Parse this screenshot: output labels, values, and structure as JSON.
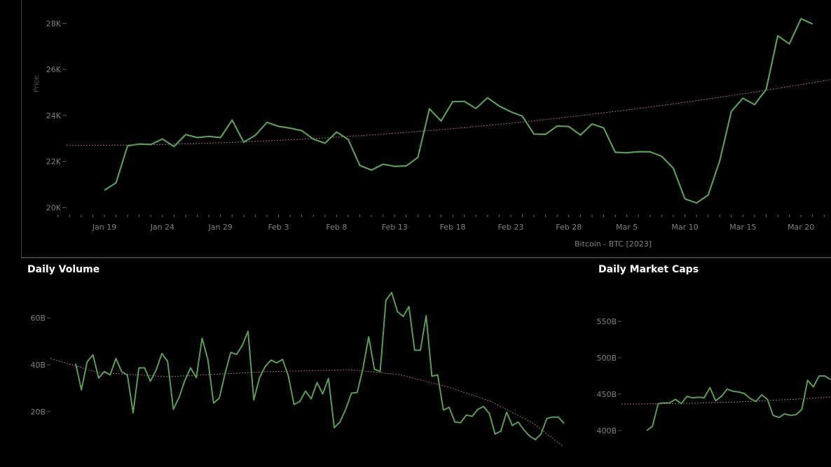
{
  "colors": {
    "background": "#000000",
    "price_line": "#5e9a59",
    "trend_line": "#a76d7f",
    "axis_text": "#7f7f7f",
    "title_text": "#ffffff"
  },
  "titles": {
    "volume": "Daily Volume",
    "market_caps": "Daily Market Caps"
  },
  "chart_data": [
    {
      "type": "line",
      "title": "",
      "ylabel": "Price",
      "xlabel": "Bitcoin - BTC [2023]",
      "ylim": [
        19700,
        28600
      ],
      "yticks": [
        20000,
        22000,
        24000,
        26000,
        28000
      ],
      "ytick_labels": [
        "20K",
        "22K",
        "24K",
        "26K",
        "28K"
      ],
      "x_start": "Jan 15",
      "x_end": "Mar 21",
      "xtick_days": [
        4,
        9,
        14,
        19,
        24,
        29,
        34,
        39,
        44,
        49,
        54,
        59,
        64
      ],
      "xtick_labels": [
        "Jan 19",
        "Jan 24",
        "Jan 29",
        "Feb 3",
        "Feb 8",
        "Feb 13",
        "Feb 18",
        "Feb 23",
        "Feb 28",
        "Mar 5",
        "Mar 10",
        "Mar 15",
        "Mar 20"
      ],
      "series": [
        {
          "x_start_day": 4,
          "values": [
            20750,
            21080,
            22680,
            22760,
            22740,
            22980,
            22650,
            23170,
            23040,
            23090,
            23040,
            23800,
            22840,
            23140,
            23700,
            23530,
            23450,
            23340,
            22970,
            22800,
            23280,
            22960,
            21830,
            21630,
            21880,
            21790,
            21810,
            22180,
            24290,
            23760,
            24600,
            24610,
            24300,
            24770,
            24410,
            24160,
            23970,
            23190,
            23180,
            23540,
            23520,
            23150,
            23630,
            23460,
            22400,
            22380,
            22430,
            22420,
            22230,
            21710,
            20380,
            20200,
            20540,
            22030,
            24180,
            24750,
            24470,
            25130,
            27460,
            27110,
            28200,
            27970
          ]
        }
      ],
      "trend": {
        "start": 22700,
        "end": 25560
      }
    },
    {
      "type": "line",
      "title": "Daily Volume",
      "ylim": [
        4000,
        66000
      ],
      "yticks": [
        20000000000,
        40000000000,
        60000000000
      ],
      "ytick_labels": [
        "20B",
        "40B",
        "60B"
      ],
      "series": [
        {
          "values": [
            40.5,
            29.3,
            41.3,
            44.2,
            34.4,
            37.1,
            35.6,
            42.7,
            37.1,
            35.6,
            19.5,
            38.7,
            38.7,
            33.0,
            37.7,
            44.8,
            41.5,
            21.0,
            26.1,
            33.3,
            38.7,
            34.5,
            51.3,
            42.3,
            23.7,
            25.8,
            36.3,
            45.3,
            44.4,
            48.3,
            54.3,
            25.0,
            34.5,
            39.3,
            42.0,
            40.8,
            42.3,
            35.4,
            23.1,
            24.3,
            28.8,
            25.5,
            32.4,
            27.6,
            34.2,
            13.2,
            15.6,
            21.0,
            27.9,
            28.2,
            38.4,
            51.9,
            38.1,
            37.2,
            67.5,
            70.8,
            62.7,
            60.6,
            64.8,
            46.2,
            46.2,
            60.9,
            35.1,
            35.7,
            20.7,
            21.9,
            15.6,
            15.3,
            18.6,
            18.0,
            21.0,
            22.2,
            19.2,
            10.5,
            11.7,
            19.8,
            14.1,
            15.6,
            12.3,
            9.6,
            8.1,
            10.5,
            17.1,
            17.7,
            17.7,
            15.0
          ]
        }
      ]
    },
    {
      "type": "line",
      "title": "Daily Market Caps",
      "yticks": [
        400,
        450,
        500,
        550
      ],
      "ytick_labels": [
        "400B",
        "450B",
        "500B",
        "550B"
      ],
      "series": [
        {
          "values": [
            400,
            406,
            437,
            438,
            438,
            443,
            437,
            447,
            445,
            446,
            445,
            459,
            441,
            447,
            457,
            454,
            453,
            451,
            444,
            440,
            449,
            443,
            421,
            418,
            423,
            421,
            422,
            429,
            469,
            460,
            475,
            475,
            470
          ]
        }
      ]
    }
  ]
}
